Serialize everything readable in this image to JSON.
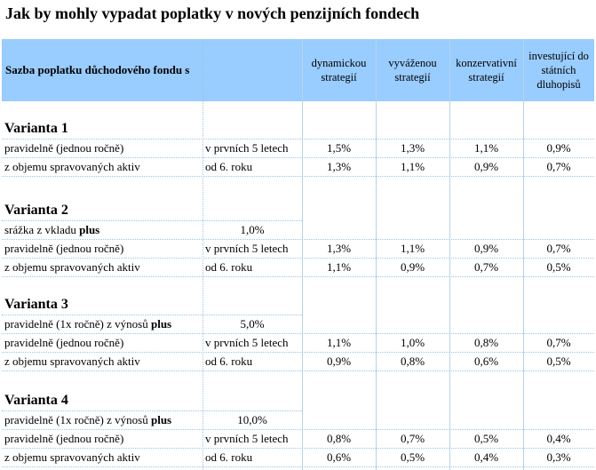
{
  "title": "Jak by mohly vypadat poplatky v nových penzijních fondech",
  "header": {
    "row_label": "Sazba poplatku důchodového fondu s",
    "columns": [
      "dynamickou strategií",
      "vyváženou strategií",
      "konzervativní strategií",
      "investující do státních dluhopisů"
    ]
  },
  "variants": [
    {
      "name": "Varianta 1",
      "extra": null,
      "rows": [
        {
          "label": "pravidelně (jednou ročně)",
          "period": "v prvních 5 letech",
          "values": [
            "1,5%",
            "1,3%",
            "1,1%",
            "0,9%"
          ]
        },
        {
          "label": "z objemu spravovaných aktiv",
          "period": "od 6. roku",
          "values": [
            "1,3%",
            "1,1%",
            "0,9%",
            "0,7%"
          ]
        }
      ]
    },
    {
      "name": "Varianta 2",
      "extra": {
        "label": "srážka z vkladu",
        "bold": "plus",
        "value": "1,0%"
      },
      "rows": [
        {
          "label": "pravidelně (jednou ročně)",
          "period": "v prvních 5 letech",
          "values": [
            "1,3%",
            "1,1%",
            "0,9%",
            "0,7%"
          ]
        },
        {
          "label": "z objemu spravovaných aktiv",
          "period": "od 6. roku",
          "values": [
            "1,1%",
            "0,9%",
            "0,7%",
            "0,5%"
          ]
        }
      ]
    },
    {
      "name": "Varianta 3",
      "extra": {
        "label": "pravidelně (1x ročně) z výnosů",
        "bold": "plus",
        "value": "5,0%"
      },
      "rows": [
        {
          "label": "pravidelně (jednou ročně)",
          "period": "v prvních 5 letech",
          "values": [
            "1,1%",
            "1,0%",
            "0,8%",
            "0,7%"
          ]
        },
        {
          "label": "z objemu spravovaných aktiv",
          "period": "od 6. roku",
          "values": [
            "0,9%",
            "0,8%",
            "0,6%",
            "0,5%"
          ]
        }
      ]
    },
    {
      "name": "Varianta 4",
      "extra": {
        "label": "pravidelně (1x ročně) z výnosů",
        "bold": "plus",
        "value": "10,0%"
      },
      "rows": [
        {
          "label": "pravidelně (jednou ročně)",
          "period": "v prvních 5 letech",
          "values": [
            "0,8%",
            "0,7%",
            "0,5%",
            "0,4%"
          ]
        },
        {
          "label": "z objemu spravovaných aktiv",
          "period": "od 6. roku",
          "values": [
            "0,6%",
            "0,5%",
            "0,4%",
            "0,3%"
          ]
        }
      ]
    }
  ]
}
